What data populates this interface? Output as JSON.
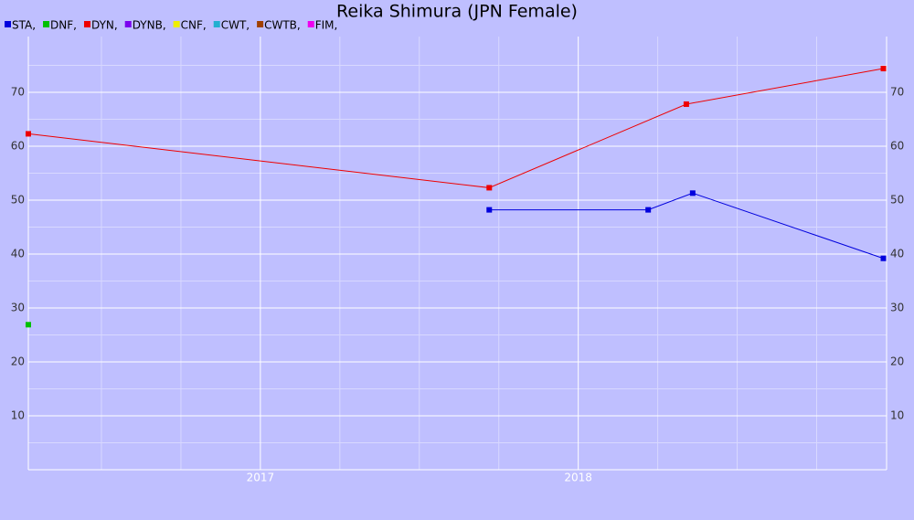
{
  "chart_data": {
    "type": "line",
    "title": "Reika Shimura (JPN Female)",
    "xlim": [
      2016.27,
      2018.97
    ],
    "xticks": [
      2017,
      2018
    ],
    "xminor": [
      2016.5,
      2016.75,
      2017.25,
      2017.5,
      2017.75,
      2018.25,
      2018.5,
      2018.75
    ],
    "ylim": [
      0,
      80
    ],
    "yticks": [
      10,
      20,
      30,
      40,
      50,
      60,
      70
    ],
    "yminor": [
      5,
      15,
      25,
      35,
      45,
      55,
      65,
      75
    ],
    "grid": true,
    "series": [
      {
        "name": "STA,",
        "color": "#0000dd",
        "x": [
          2017.72,
          2018.22,
          2018.36,
          2018.96
        ],
        "values": [
          48.2,
          48.2,
          51.3,
          39.2
        ]
      },
      {
        "name": "DNF,",
        "color": "#00c000",
        "x": [
          2016.27
        ],
        "values": [
          26.9
        ]
      },
      {
        "name": "DYN,",
        "color": "#ee0000",
        "x": [
          2016.27,
          2017.72,
          2018.34,
          2018.96
        ],
        "values": [
          62.3,
          52.3,
          67.8,
          74.4
        ]
      },
      {
        "name": "DYNB,",
        "color": "#7a00ee",
        "x": [],
        "values": []
      },
      {
        "name": "CNF,",
        "color": "#eeee00",
        "x": [],
        "values": []
      },
      {
        "name": "CWT,",
        "color": "#22b0d0",
        "x": [],
        "values": []
      },
      {
        "name": "CWTB,",
        "color": "#a04000",
        "x": [],
        "values": []
      },
      {
        "name": "FIM,",
        "color": "#ee00ee",
        "x": [],
        "values": []
      }
    ]
  }
}
